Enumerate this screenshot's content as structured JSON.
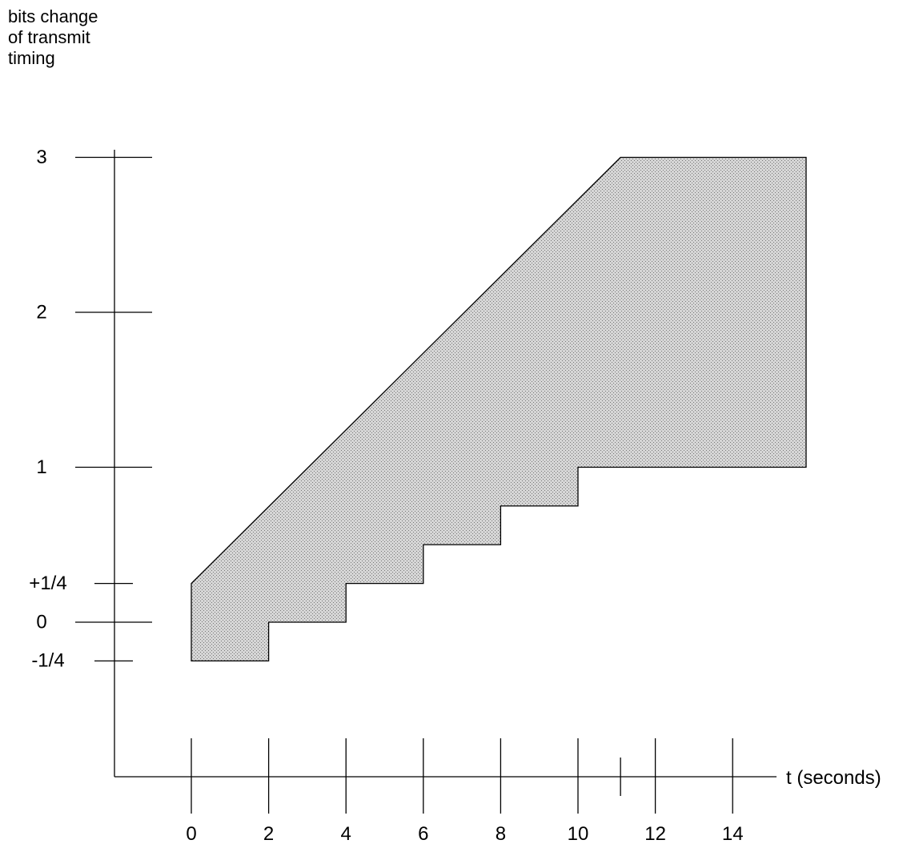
{
  "chart_data": {
    "type": "area",
    "ylabel_lines": [
      "bits change",
      "of transmit",
      "timing"
    ],
    "xlabel": "t (seconds)",
    "x_ticks": [
      {
        "value": 0,
        "label": "0"
      },
      {
        "value": 2,
        "label": "2"
      },
      {
        "value": 4,
        "label": "4"
      },
      {
        "value": 6,
        "label": "6"
      },
      {
        "value": 8,
        "label": "8"
      },
      {
        "value": 10,
        "label": "10"
      },
      {
        "value": 12,
        "label": "12"
      },
      {
        "value": 14,
        "label": "14"
      }
    ],
    "x_extra_ticks": [
      11.1
    ],
    "y_ticks": [
      {
        "value": 3,
        "label": "3"
      },
      {
        "value": 2,
        "label": "2"
      },
      {
        "value": 1,
        "label": "1"
      },
      {
        "value": 0.25,
        "label": "+1/4"
      },
      {
        "value": 0,
        "label": "0"
      },
      {
        "value": -0.25,
        "label": "-1/4"
      }
    ],
    "region_upper_boundary": [
      {
        "x": 0,
        "y": 0.25
      },
      {
        "x": 11.1,
        "y": 3
      },
      {
        "x": 15.9,
        "y": 3
      }
    ],
    "region_lower_boundary": [
      {
        "x": 0,
        "y": -0.25
      },
      {
        "x": 2,
        "y": -0.25
      },
      {
        "x": 2,
        "y": 0
      },
      {
        "x": 4,
        "y": 0
      },
      {
        "x": 4,
        "y": 0.25
      },
      {
        "x": 6,
        "y": 0.25
      },
      {
        "x": 6,
        "y": 0.5
      },
      {
        "x": 8,
        "y": 0.5
      },
      {
        "x": 8,
        "y": 0.75
      },
      {
        "x": 10,
        "y": 0.75
      },
      {
        "x": 10,
        "y": 1
      },
      {
        "x": 15.9,
        "y": 1
      }
    ],
    "fill_color": "#c4c4c4",
    "line_color": "#000000"
  }
}
